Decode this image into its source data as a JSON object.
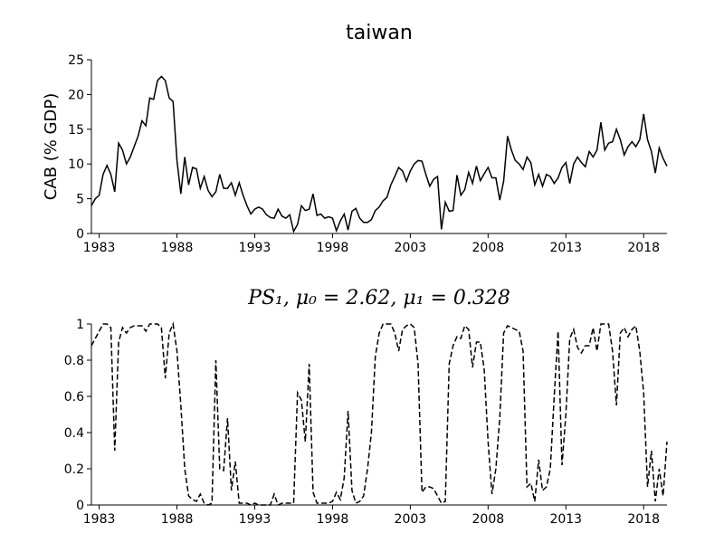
{
  "chart_data": [
    {
      "type": "line",
      "title": "taiwan",
      "ylabel": "CAB (% GDP)",
      "grid": false,
      "xlim": [
        1982.5,
        2019.5
      ],
      "xticks": [
        1983,
        1988,
        1993,
        1998,
        2003,
        2008,
        2013,
        2018
      ],
      "ylim": [
        0,
        25
      ],
      "yticks": [
        0,
        5,
        10,
        15,
        20,
        25
      ],
      "x": [
        1982.5,
        1982.75,
        1983,
        1983.25,
        1983.5,
        1983.75,
        1984,
        1984.25,
        1984.5,
        1984.75,
        1985,
        1985.25,
        1985.5,
        1985.75,
        1986,
        1986.25,
        1986.5,
        1986.75,
        1987,
        1987.25,
        1987.5,
        1987.75,
        1988,
        1988.25,
        1988.5,
        1988.75,
        1989,
        1989.25,
        1989.5,
        1989.75,
        1990,
        1990.25,
        1990.5,
        1990.75,
        1991,
        1991.25,
        1991.5,
        1991.75,
        1992,
        1992.25,
        1992.5,
        1992.75,
        1993,
        1993.25,
        1993.5,
        1993.75,
        1994,
        1994.25,
        1994.5,
        1994.75,
        1995,
        1995.25,
        1995.5,
        1995.75,
        1996,
        1996.25,
        1996.5,
        1996.75,
        1997,
        1997.25,
        1997.5,
        1997.75,
        1998,
        1998.25,
        1998.5,
        1998.75,
        1999,
        1999.25,
        1999.5,
        1999.75,
        2000,
        2000.25,
        2000.5,
        2000.75,
        2001,
        2001.25,
        2001.5,
        2001.75,
        2002,
        2002.25,
        2002.5,
        2002.75,
        2003,
        2003.25,
        2003.5,
        2003.75,
        2004,
        2004.25,
        2004.5,
        2004.75,
        2005,
        2005.25,
        2005.5,
        2005.75,
        2006,
        2006.25,
        2006.5,
        2006.75,
        2007,
        2007.25,
        2007.5,
        2007.75,
        2008,
        2008.25,
        2008.5,
        2008.75,
        2009,
        2009.25,
        2009.5,
        2009.75,
        2010,
        2010.25,
        2010.5,
        2010.75,
        2011,
        2011.25,
        2011.5,
        2011.75,
        2012,
        2012.25,
        2012.5,
        2012.75,
        2013,
        2013.25,
        2013.5,
        2013.75,
        2014,
        2014.25,
        2014.5,
        2014.75,
        2015,
        2015.25,
        2015.5,
        2015.75,
        2016,
        2016.25,
        2016.5,
        2016.75,
        2017,
        2017.25,
        2017.5,
        2017.75,
        2018,
        2018.25,
        2018.5,
        2018.75,
        2019,
        2019.25,
        2019.5
      ],
      "series": [
        {
          "color": "#000000",
          "dash": false,
          "values": [
            4,
            5,
            5.5,
            8.5,
            9.8,
            8.5,
            6,
            13,
            12,
            10,
            11,
            12.5,
            14,
            16.2,
            15.5,
            19.5,
            19.3,
            22,
            22.6,
            22,
            19.5,
            19,
            10.5,
            5.7,
            11,
            7,
            9.5,
            9.3,
            6.5,
            8.2,
            6.2,
            5.3,
            6,
            8.5,
            6.5,
            6.5,
            7.3,
            5.5,
            7.3,
            5.5,
            4,
            2.8,
            3.5,
            3.8,
            3.5,
            2.7,
            2.3,
            2.2,
            3.5,
            2.5,
            2.2,
            2.7,
            0.3,
            1.3,
            4,
            3.3,
            3.5,
            5.7,
            2.6,
            2.8,
            2.2,
            2.4,
            2.2,
            0.4,
            1.8,
            2.8,
            0.5,
            3.2,
            3.6,
            2.2,
            1.6,
            1.6,
            2,
            3.3,
            3.8,
            4.7,
            5.2,
            7,
            8.2,
            9.5,
            9,
            7.5,
            9,
            10,
            10.5,
            10.4,
            8.5,
            6.8,
            7.8,
            8.2,
            0.6,
            4.5,
            3.2,
            3.3,
            8.4,
            5.5,
            6.3,
            8.8,
            7.2,
            9.7,
            7.6,
            8.6,
            9.5,
            8,
            8,
            4.8,
            7.5,
            14,
            12,
            10.5,
            10,
            9.2,
            11,
            10.2,
            7,
            8.5,
            6.8,
            8.5,
            8.2,
            7.2,
            8,
            9.5,
            10.2,
            7.2,
            10,
            11,
            10.2,
            9.6,
            11.8,
            11,
            12,
            16,
            12,
            13,
            13.2,
            15,
            13.5,
            11.3,
            12.5,
            13.2,
            12.5,
            13.5,
            17.2,
            13.5,
            11.8,
            8.7,
            12.3,
            10.8,
            9.7
          ]
        }
      ]
    },
    {
      "type": "line",
      "title": "PS₁, μ₀ = 2.62, μ₁ = 0.328",
      "grid": false,
      "xlim": [
        1982.5,
        2019.5
      ],
      "xticks": [
        1983,
        1988,
        1993,
        1998,
        2003,
        2008,
        2013,
        2018
      ],
      "ylim": [
        0,
        1
      ],
      "yticks": [
        0,
        0.2,
        0.4,
        0.6,
        0.8,
        1
      ],
      "x": [
        1982.5,
        1982.75,
        1983,
        1983.25,
        1983.5,
        1983.75,
        1984,
        1984.25,
        1984.5,
        1984.75,
        1985,
        1985.25,
        1985.5,
        1985.75,
        1986,
        1986.25,
        1986.5,
        1986.75,
        1987,
        1987.25,
        1987.5,
        1987.75,
        1988,
        1988.25,
        1988.5,
        1988.75,
        1989,
        1989.25,
        1989.5,
        1989.75,
        1990,
        1990.25,
        1990.5,
        1990.75,
        1991,
        1991.25,
        1991.5,
        1991.75,
        1992,
        1992.25,
        1992.5,
        1992.75,
        1993,
        1993.25,
        1993.5,
        1993.75,
        1994,
        1994.25,
        1994.5,
        1994.75,
        1995,
        1995.25,
        1995.5,
        1995.75,
        1996,
        1996.25,
        1996.5,
        1996.75,
        1997,
        1997.25,
        1997.5,
        1997.75,
        1998,
        1998.25,
        1998.5,
        1998.75,
        1999,
        1999.25,
        1999.5,
        1999.75,
        2000,
        2000.25,
        2000.5,
        2000.75,
        2001,
        2001.25,
        2001.5,
        2001.75,
        2002,
        2002.25,
        2002.5,
        2002.75,
        2003,
        2003.25,
        2003.5,
        2003.75,
        2004,
        2004.25,
        2004.5,
        2004.75,
        2005,
        2005.25,
        2005.5,
        2005.75,
        2006,
        2006.25,
        2006.5,
        2006.75,
        2007,
        2007.25,
        2007.5,
        2007.75,
        2008,
        2008.25,
        2008.5,
        2008.75,
        2009,
        2009.25,
        2009.5,
        2009.75,
        2010,
        2010.25,
        2010.5,
        2010.75,
        2011,
        2011.25,
        2011.5,
        2011.75,
        2012,
        2012.25,
        2012.5,
        2012.75,
        2013,
        2013.25,
        2013.5,
        2013.75,
        2014,
        2014.25,
        2014.5,
        2014.75,
        2015,
        2015.25,
        2015.5,
        2015.75,
        2016,
        2016.25,
        2016.5,
        2016.75,
        2017,
        2017.25,
        2017.5,
        2017.75,
        2018,
        2018.25,
        2018.5,
        2018.75,
        2019,
        2019.25,
        2019.5
      ],
      "series": [
        {
          "color": "#000000",
          "dash": true,
          "values": [
            0.88,
            0.92,
            0.96,
            1,
            1,
            0.98,
            0.3,
            0.9,
            0.98,
            0.95,
            0.98,
            0.99,
            0.99,
            0.99,
            0.96,
            1,
            1,
            1,
            0.98,
            0.7,
            0.95,
            1,
            0.85,
            0.55,
            0.2,
            0.05,
            0.03,
            0.02,
            0.06,
            0.01,
            0,
            0.01,
            0.8,
            0.2,
            0.19,
            0.48,
            0.08,
            0.24,
            0.01,
            0.01,
            0.01,
            0,
            0.01,
            0,
            0,
            0,
            0,
            0.06,
            0,
            0.01,
            0.01,
            0.01,
            0.01,
            0.62,
            0.58,
            0.35,
            0.78,
            0.07,
            0.01,
            0.01,
            0.01,
            0.01,
            0.02,
            0.07,
            0.03,
            0.15,
            0.52,
            0.08,
            0.01,
            0.02,
            0.05,
            0.2,
            0.4,
            0.82,
            0.95,
            1,
            1,
            1,
            0.95,
            0.85,
            0.97,
            0.99,
            1,
            0.98,
            0.78,
            0.07,
            0.1,
            0.1,
            0.09,
            0.05,
            0.01,
            0.02,
            0.78,
            0.88,
            0.93,
            0.92,
            0.99,
            0.97,
            0.76,
            0.9,
            0.9,
            0.75,
            0.35,
            0.06,
            0.2,
            0.48,
            0.95,
            0.99,
            0.98,
            0.97,
            0.96,
            0.85,
            0.1,
            0.12,
            0.02,
            0.25,
            0.08,
            0.1,
            0.2,
            0.6,
            0.96,
            0.22,
            0.5,
            0.92,
            0.97,
            0.87,
            0.84,
            0.88,
            0.88,
            0.98,
            0.85,
            1,
            1,
            1,
            0.85,
            0.55,
            0.95,
            0.98,
            0.93,
            0.97,
            0.99,
            0.85,
            0.62,
            0.1,
            0.3,
            0.02,
            0.2,
            0.05,
            0.35
          ]
        }
      ]
    }
  ]
}
